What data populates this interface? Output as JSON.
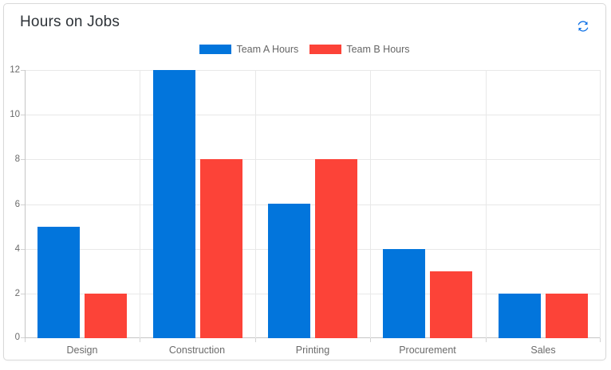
{
  "card": {
    "title": "Hours on Jobs",
    "refresh_tooltip": "Refresh"
  },
  "icons": {
    "refresh": "refresh-icon"
  },
  "colors": {
    "accent": "#1273e6",
    "team_a": "#0275dc",
    "team_b": "#fc4338",
    "card_border": "#d9d9d9",
    "title_text": "#2e3338",
    "axis_text": "#6b6b6b",
    "legend_text": "#666666",
    "gridline": "#e8e8e8",
    "axis_line": "#c6c6c6"
  },
  "chart_data": {
    "type": "bar",
    "title": "Hours on Jobs",
    "categories": [
      "Design",
      "Construction",
      "Printing",
      "Procurement",
      "Sales"
    ],
    "series": [
      {
        "name": "Team A Hours",
        "color": "#0275dc",
        "values": [
          5,
          12,
          6,
          4,
          2
        ]
      },
      {
        "name": "Team B Hours",
        "color": "#fc4338",
        "values": [
          2,
          8,
          8,
          3,
          2
        ]
      }
    ],
    "xlabel": "",
    "ylabel": "",
    "ylim": [
      0,
      12
    ],
    "yticks": [
      0,
      2,
      4,
      6,
      8,
      10,
      12
    ],
    "grid": true,
    "legend_position": "top"
  }
}
